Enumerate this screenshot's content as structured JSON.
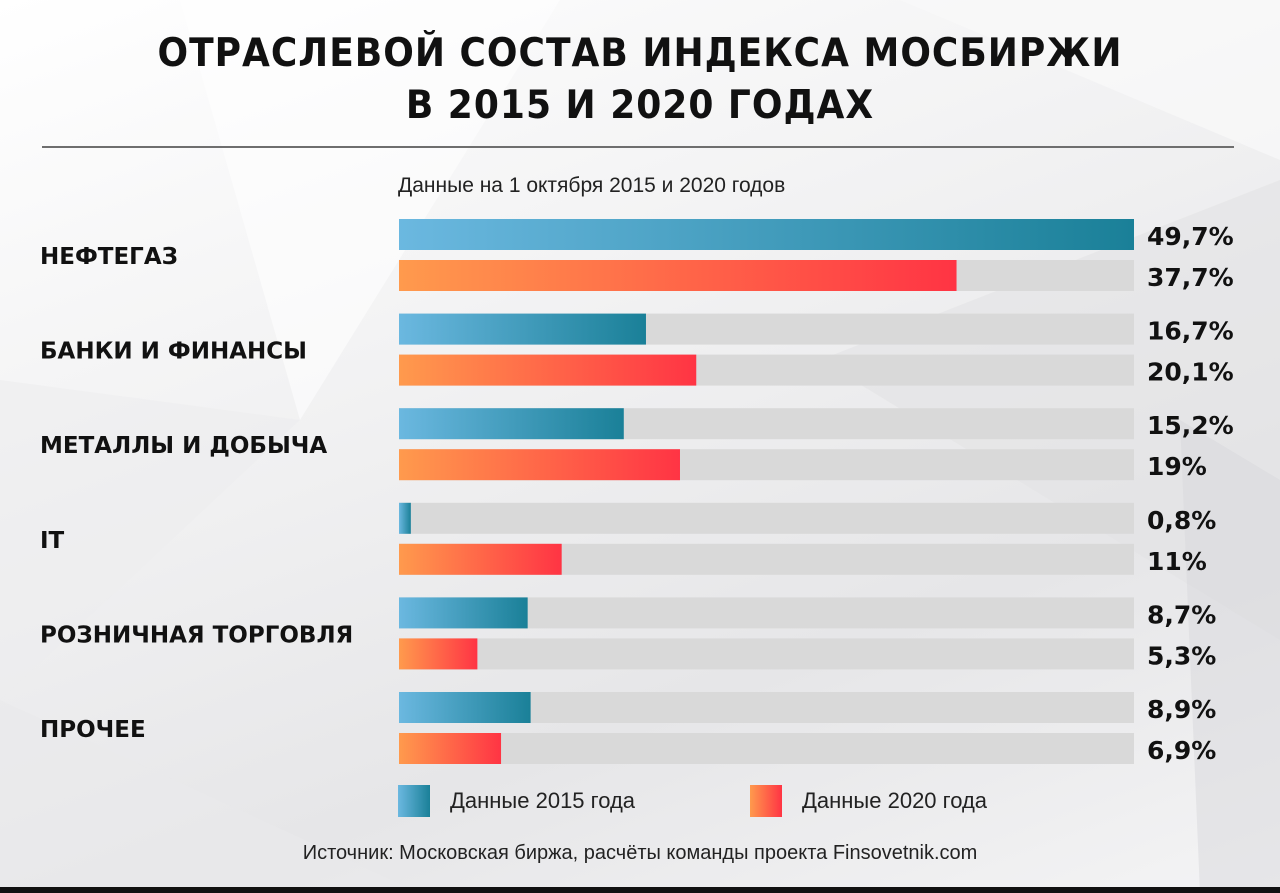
{
  "title_line1": "ОТРАСЛЕВОЙ СОСТАВ ИНДЕКСА МОСБИРЖИ",
  "title_line2": "В 2015 И 2020 ГОДАХ",
  "subtitle": "Данные на 1 октября 2015 и 2020 годов",
  "source": "Источник: Московская биржа, расчёты команды проекта Finsovetnik.com",
  "colors": {
    "series_2015_light": "#6bb8e0",
    "series_2015_dark": "#1a8098",
    "series_2020_light": "#ff9a4d",
    "series_2020_dark": "#ff3444",
    "track": "#d9d9d9"
  },
  "chart_data": {
    "type": "bar",
    "orientation": "horizontal",
    "title": "ОТРАСЛЕВОЙ СОСТАВ ИНДЕКСА МОСБИРЖИ В 2015 И 2020 ГОДАХ",
    "subtitle": "Данные на 1 октября 2015 и 2020 годов",
    "categories": [
      "НЕФТЕГАЗ",
      "БАНКИ И ФИНАНСЫ",
      "МЕТАЛЛЫ И ДОБЫЧА",
      "IT",
      "РОЗНИЧНАЯ ТОРГОВЛЯ",
      "ПРОЧЕЕ"
    ],
    "series": [
      {
        "name": "Данные 2015 года",
        "values": [
          49.7,
          16.7,
          15.2,
          0.8,
          8.7,
          8.9
        ],
        "labels": [
          "49,7%",
          "16,7%",
          "15,2%",
          "0,8%",
          "8,7%",
          "8,9%"
        ]
      },
      {
        "name": "Данные 2020 года",
        "values": [
          37.7,
          20.1,
          19,
          11,
          5.3,
          6.9
        ],
        "labels": [
          "37,7%",
          "20,1%",
          "19%",
          "11%",
          "5,3%",
          "6,9%"
        ]
      }
    ],
    "xlim": [
      0,
      49.7
    ],
    "grid": false,
    "legend": "bottom"
  }
}
